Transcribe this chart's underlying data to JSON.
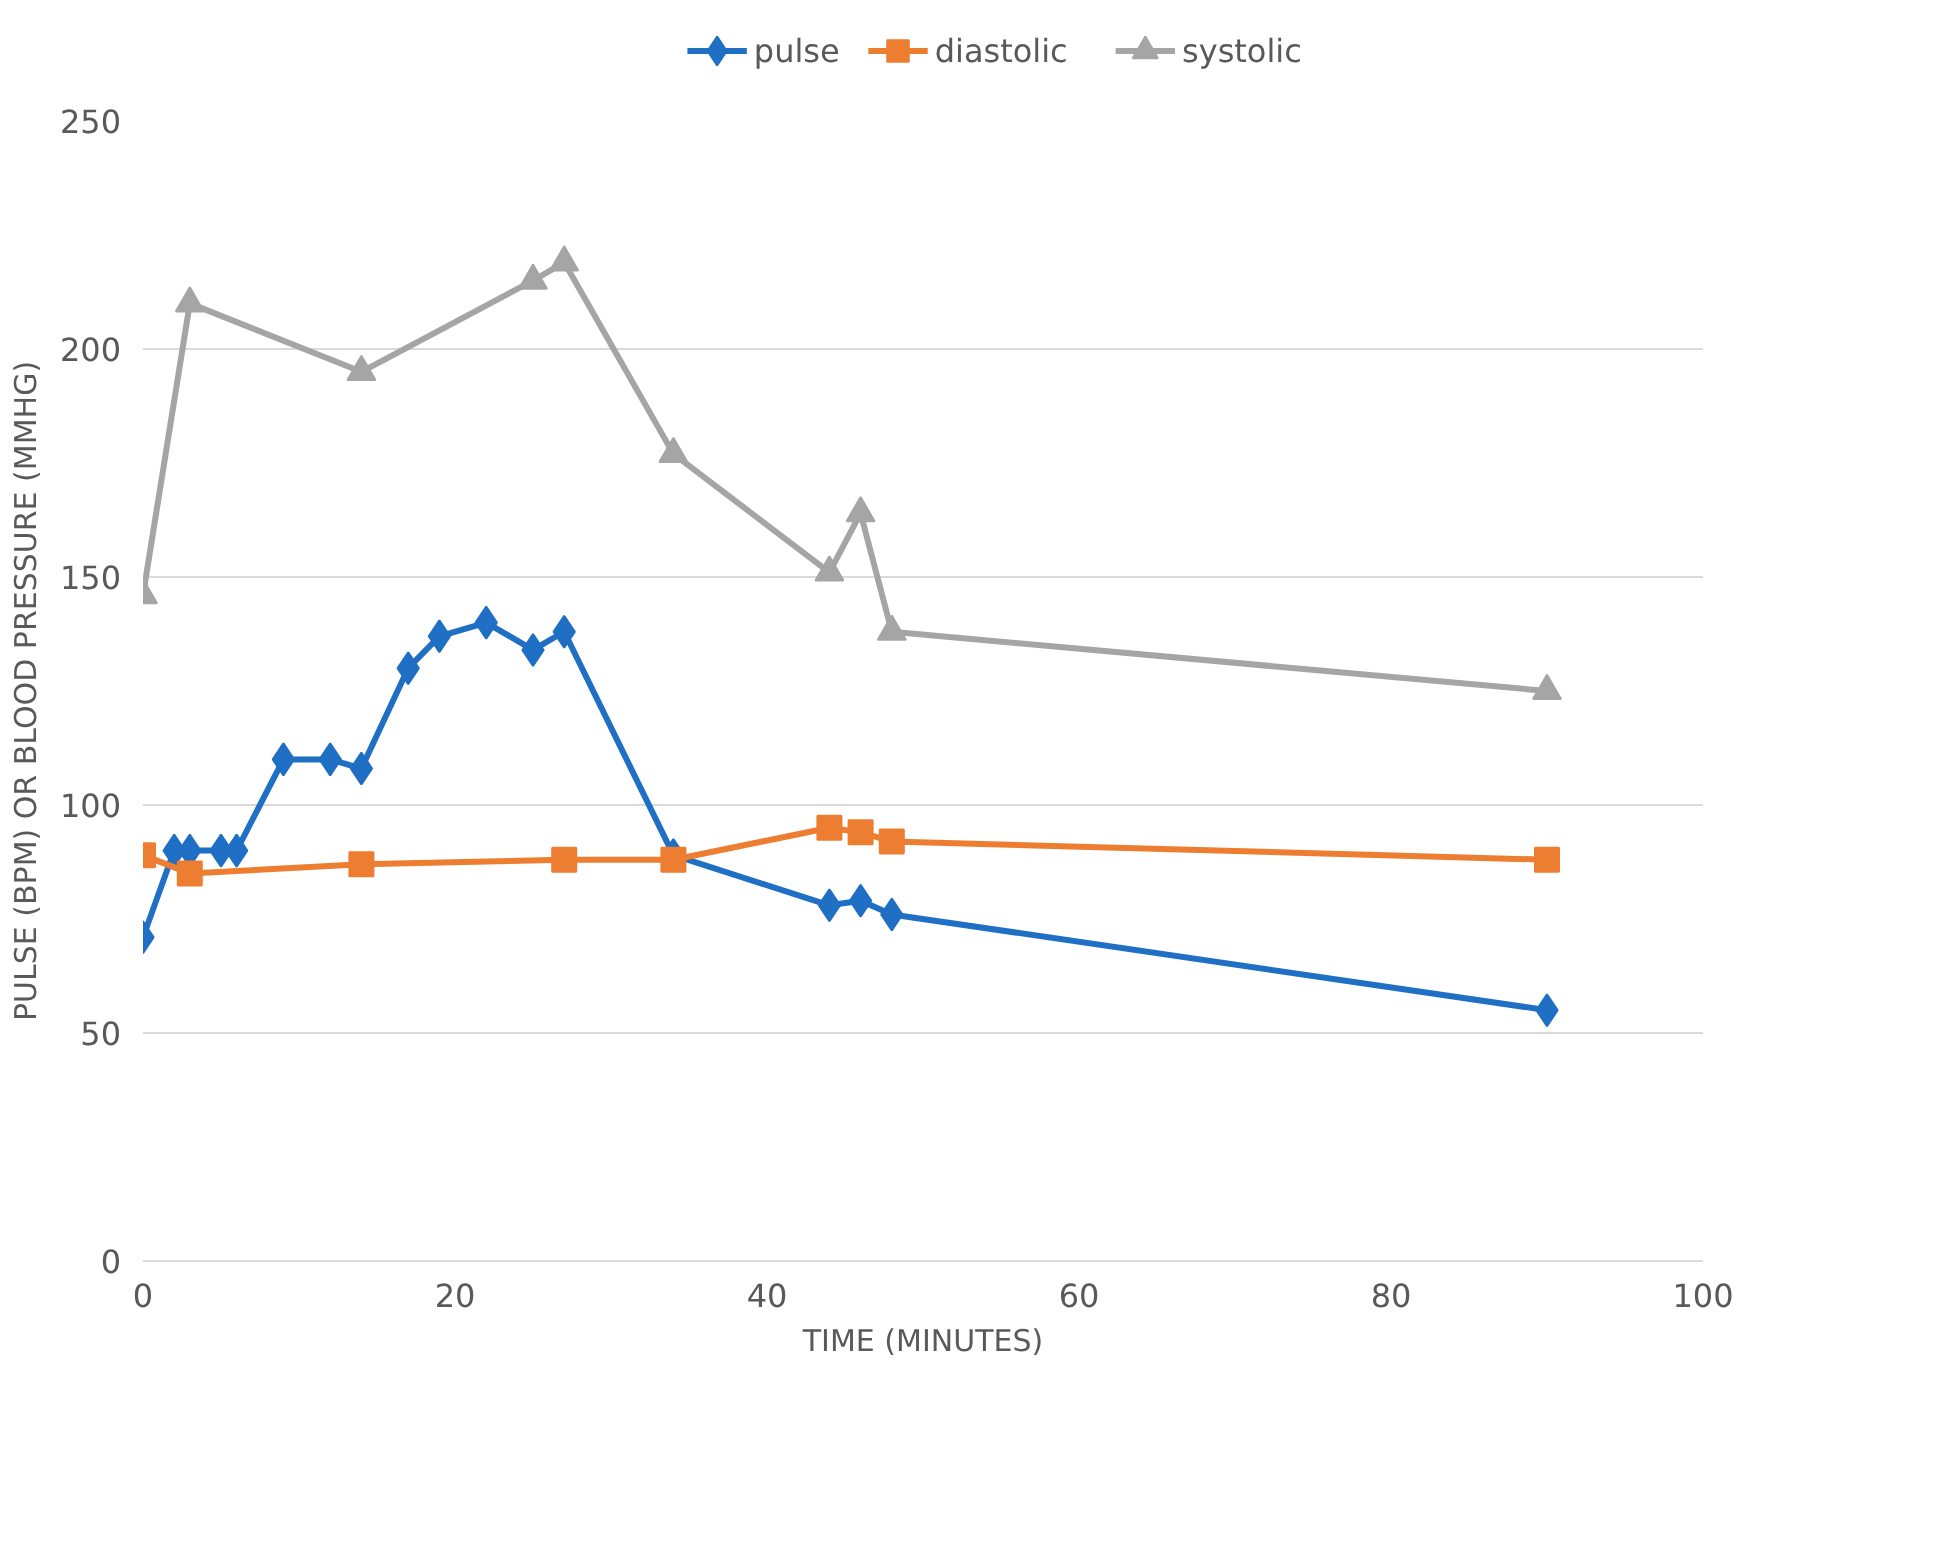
{
  "chart_data": {
    "type": "line",
    "xlabel": "TIME (MINUTES)",
    "ylabel": "PULSE (BPM) OR BLOOD PRESSURE (MMHG)",
    "xlim": [
      0,
      100
    ],
    "xticks": [
      0,
      20,
      40,
      60,
      80,
      100
    ],
    "ylim": [
      0,
      250
    ],
    "yticks": [
      0,
      50,
      100,
      150,
      200,
      250
    ],
    "grid": "y",
    "legend": "top",
    "line_style": "solid",
    "series": [
      {
        "name": "pulse",
        "color": "#1f6fc4",
        "marker": "diamond",
        "x": [
          0,
          2,
          3,
          5,
          6,
          9,
          12,
          14,
          17,
          19,
          22,
          25,
          27,
          34,
          44,
          46,
          48,
          90
        ],
        "values": [
          71,
          90,
          90,
          90,
          90,
          110,
          110,
          108,
          130,
          137,
          140,
          134,
          138,
          89,
          78,
          79,
          76,
          55
        ]
      },
      {
        "name": "diastolic",
        "color": "#ed7d31",
        "marker": "square",
        "x": [
          0,
          3,
          14,
          27,
          34,
          44,
          46,
          48,
          90
        ],
        "values": [
          89,
          85,
          87,
          88,
          88,
          95,
          94,
          92,
          88
        ]
      },
      {
        "name": "systolic",
        "color": "#a5a5a5",
        "marker": "triangle",
        "x": [
          0,
          3,
          14,
          25,
          27,
          34,
          44,
          46,
          48,
          90
        ],
        "values": [
          146,
          210,
          195,
          215,
          219,
          177,
          151,
          164,
          138,
          125
        ]
      }
    ]
  }
}
